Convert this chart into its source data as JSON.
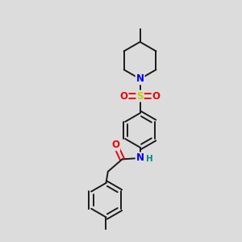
{
  "bg_color": "#dcdcdc",
  "bond_color": "#1a1a1a",
  "bond_width": 1.4,
  "atom_colors": {
    "N": "#0000ee",
    "O": "#ee0000",
    "S": "#cccc00",
    "H": "#008888",
    "C": "#1a1a1a"
  },
  "font_size_atom": 8.5,
  "font_size_small": 7.5,
  "fig_width": 3.0,
  "fig_height": 3.0,
  "dpi": 100
}
